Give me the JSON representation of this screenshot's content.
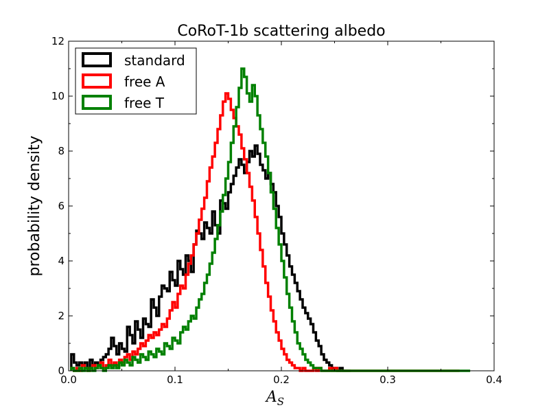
{
  "chart_data": {
    "type": "histogram",
    "title": "CoRoT-1b scattering albedo",
    "xlabel_main": "A",
    "xlabel_sub": "S",
    "ylabel": "probability density",
    "xlim": [
      0.0,
      0.4
    ],
    "ylim": [
      0,
      12
    ],
    "xticks": [
      "0.0",
      "0.1",
      "0.2",
      "0.3",
      "0.4"
    ],
    "yticks": [
      "0",
      "2",
      "4",
      "6",
      "8",
      "10",
      "12"
    ],
    "legend_position": "top-left",
    "bin_width": 0.0025,
    "series": [
      {
        "name": "standard",
        "color": "#000000",
        "x_start": 0.0025,
        "values": [
          0.6,
          0.3,
          0.2,
          0.3,
          0.2,
          0.3,
          0.1,
          0.4,
          0.2,
          0.3,
          0.2,
          0.4,
          0.5,
          0.6,
          0.8,
          1.2,
          0.9,
          0.6,
          1.0,
          0.8,
          0.7,
          1.6,
          1.3,
          1.0,
          1.8,
          1.5,
          1.2,
          1.9,
          1.7,
          1.6,
          2.6,
          2.3,
          2.0,
          2.7,
          3.1,
          3.0,
          2.9,
          3.6,
          3.3,
          3.1,
          4.0,
          3.7,
          3.5,
          4.2,
          4.0,
          3.6,
          4.6,
          5.1,
          5.0,
          4.8,
          5.4,
          5.2,
          5.0,
          5.8,
          5.3,
          5.0,
          6.2,
          6.1,
          5.9,
          6.5,
          6.8,
          7.1,
          7.4,
          7.7,
          7.5,
          7.2,
          7.6,
          8.0,
          7.8,
          8.2,
          7.9,
          7.5,
          7.3,
          7.0,
          7.2,
          6.8,
          6.5,
          6.0,
          5.6,
          5.0,
          4.6,
          4.2,
          3.8,
          3.5,
          3.2,
          2.9,
          2.6,
          2.3,
          2.1,
          1.9,
          1.7,
          1.4,
          1.1,
          0.9,
          0.6,
          0.4,
          0.3,
          0.2,
          0.1,
          0.1,
          0.0,
          0.1,
          0.0,
          0.0,
          0.0
        ]
      },
      {
        "name": "free A",
        "color": "#ff0000",
        "x_start": 0.0025,
        "values": [
          0.1,
          0.0,
          0.1,
          0.0,
          0.2,
          0.1,
          0.0,
          0.1,
          0.2,
          0.1,
          0.2,
          0.3,
          0.1,
          0.2,
          0.4,
          0.2,
          0.3,
          0.2,
          0.4,
          0.3,
          0.5,
          0.6,
          0.4,
          0.7,
          0.6,
          0.8,
          1.0,
          0.9,
          1.1,
          1.3,
          1.2,
          1.4,
          1.3,
          1.5,
          1.7,
          1.6,
          1.9,
          2.2,
          2.5,
          2.3,
          2.8,
          3.1,
          3.0,
          3.5,
          3.9,
          4.2,
          4.6,
          5.0,
          5.5,
          5.9,
          6.3,
          6.9,
          7.4,
          7.8,
          8.3,
          8.8,
          9.3,
          9.8,
          10.1,
          9.9,
          9.5,
          9.2,
          8.9,
          8.6,
          8.1,
          7.7,
          7.2,
          6.7,
          6.2,
          5.6,
          5.0,
          4.4,
          3.8,
          3.2,
          2.7,
          2.2,
          1.8,
          1.4,
          1.1,
          0.8,
          0.6,
          0.4,
          0.3,
          0.2,
          0.1,
          0.1,
          0.0,
          0.1,
          0.0,
          0.0,
          0.0,
          0.1,
          0.0,
          0.1,
          0.0,
          0.0,
          0.0,
          0.1,
          0.0,
          0.1,
          0.0,
          0.0,
          0.0,
          0.0,
          0.0,
          0.0,
          0.0,
          0.0,
          0.0,
          0.0,
          0.0,
          0.0,
          0.0,
          0.0,
          0.0,
          0.0,
          0.0,
          0.0,
          0.0,
          0.0,
          0.0,
          0.0,
          0.0,
          0.0,
          0.0,
          0.0,
          0.0,
          0.0,
          0.0,
          0.0,
          0.0,
          0.0,
          0.0,
          0.0,
          0.0,
          0.0,
          0.0,
          0.0,
          0.0,
          0.0,
          0.0,
          0.0,
          0.0,
          0.0,
          0.0,
          0.0
        ]
      },
      {
        "name": "free T",
        "color": "#008000",
        "x_start": 0.0025,
        "values": [
          0.1,
          0.0,
          0.0,
          0.1,
          0.0,
          0.1,
          0.0,
          0.1,
          0.0,
          0.1,
          0.2,
          0.1,
          0.0,
          0.1,
          0.2,
          0.1,
          0.2,
          0.1,
          0.3,
          0.2,
          0.4,
          0.3,
          0.2,
          0.5,
          0.4,
          0.3,
          0.6,
          0.5,
          0.4,
          0.7,
          0.6,
          0.5,
          0.8,
          0.7,
          0.6,
          1.0,
          0.9,
          0.8,
          1.2,
          1.1,
          1.0,
          1.4,
          1.6,
          1.5,
          1.8,
          2.0,
          1.9,
          2.3,
          2.6,
          2.8,
          3.2,
          3.5,
          3.9,
          4.3,
          4.8,
          5.3,
          5.8,
          6.4,
          7.0,
          7.6,
          8.3,
          8.9,
          9.6,
          10.3,
          11.0,
          10.7,
          10.1,
          9.8,
          10.4,
          10.0,
          9.3,
          8.8,
          8.3,
          7.8,
          7.2,
          6.5,
          5.9,
          5.2,
          4.6,
          4.0,
          3.4,
          2.8,
          2.3,
          1.8,
          1.4,
          1.0,
          0.8,
          0.6,
          0.4,
          0.3,
          0.2,
          0.1,
          0.1,
          0.1,
          0.0,
          0.0,
          0.0,
          0.0,
          0.0,
          0.0,
          0.0,
          0.0,
          0.0,
          0.0,
          0.0,
          0.0,
          0.0,
          0.0,
          0.0,
          0.0,
          0.0,
          0.0,
          0.0,
          0.0,
          0.0,
          0.0,
          0.0,
          0.0,
          0.0,
          0.0,
          0.0,
          0.0,
          0.0,
          0.0,
          0.0,
          0.0,
          0.0,
          0.0,
          0.0,
          0.0,
          0.0,
          0.0,
          0.0,
          0.0,
          0.0,
          0.0,
          0.0,
          0.0,
          0.0,
          0.0,
          0.0,
          0.0,
          0.0,
          0.0,
          0.0,
          0.0,
          0.0,
          0.0,
          0.0,
          0.0
        ]
      }
    ]
  }
}
